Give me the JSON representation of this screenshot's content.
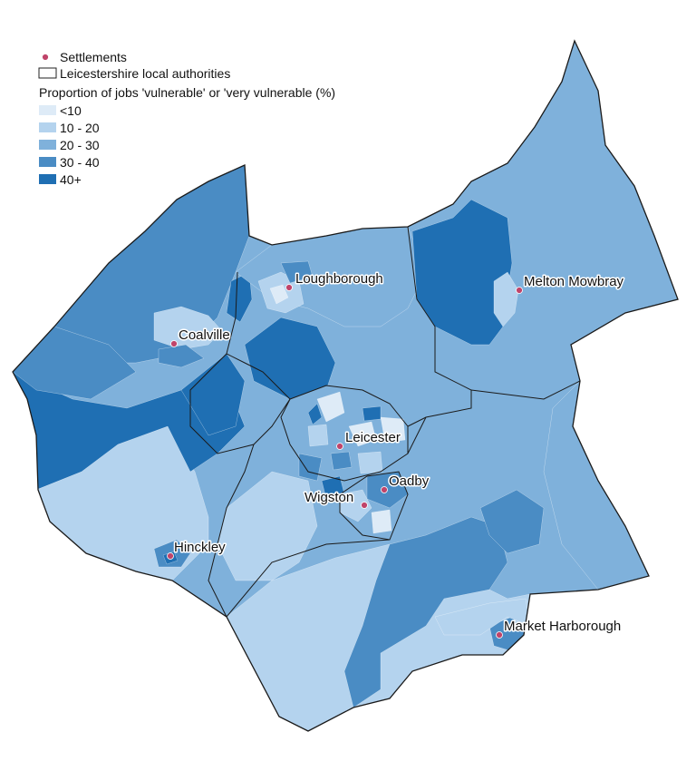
{
  "legend": {
    "settlements_label": "Settlements",
    "authorities_label": "Leicestershire local authorities",
    "title": "Proportion of jobs 'vulnerable' or 'very vulnerable (%)",
    "classes": [
      {
        "label": "<10",
        "color": "#deebf7"
      },
      {
        "label": "10 - 20",
        "color": "#b4d3ee"
      },
      {
        "label": "20 - 30",
        "color": "#7fb1db"
      },
      {
        "label": "30 - 40",
        "color": "#4a8cc4"
      },
      {
        "label": "40+",
        "color": "#1f6fb3"
      }
    ],
    "settlement_color": "#c0446a"
  },
  "settlements": [
    {
      "name": "Loughborough"
    },
    {
      "name": "Melton Mowbray"
    },
    {
      "name": "Coalville"
    },
    {
      "name": "Leicester"
    },
    {
      "name": "Oadby"
    },
    {
      "name": "Wigston"
    },
    {
      "name": "Hinckley"
    },
    {
      "name": "Market Harborough"
    }
  ]
}
